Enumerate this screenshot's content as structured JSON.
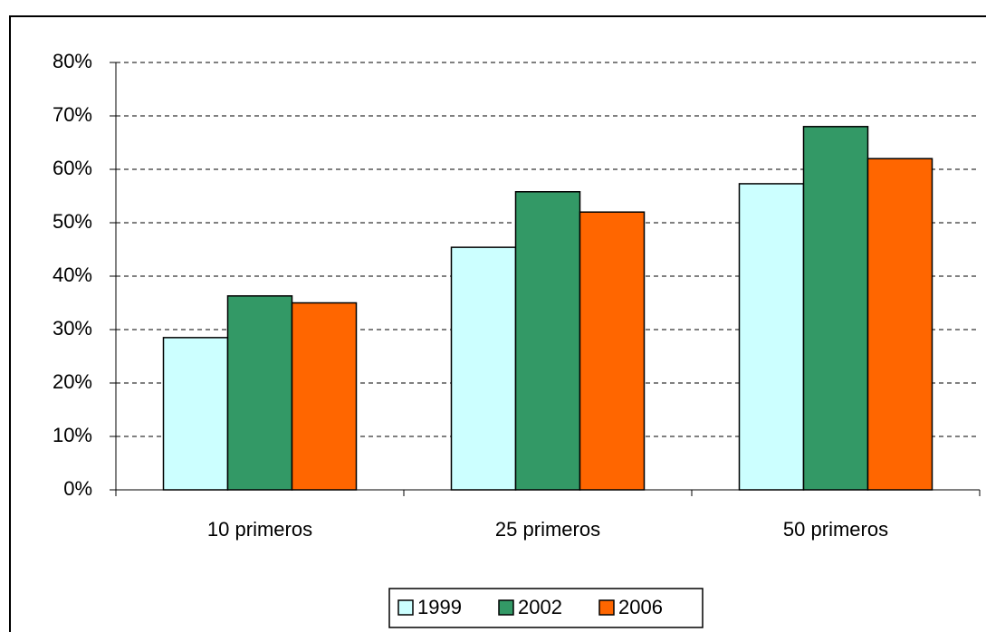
{
  "chart_data": {
    "type": "bar",
    "categories": [
      "10 primeros",
      "25 primeros",
      "50 primeros"
    ],
    "series": [
      {
        "name": "1999",
        "color": "#ccffff",
        "values": [
          28.5,
          45.4,
          57.3
        ]
      },
      {
        "name": "2002",
        "color": "#339966",
        "values": [
          36.3,
          55.8,
          68
        ]
      },
      {
        "name": "2006",
        "color": "#ff6600",
        "values": [
          35,
          52,
          62
        ]
      }
    ],
    "ylim": [
      0,
      80
    ],
    "yticks": [
      {
        "value": 0,
        "label": "0%"
      },
      {
        "value": 10,
        "label": "10%"
      },
      {
        "value": 20,
        "label": "20%"
      },
      {
        "value": 30,
        "label": "30%"
      },
      {
        "value": 40,
        "label": "40%"
      },
      {
        "value": 50,
        "label": "50%"
      },
      {
        "value": 60,
        "label": "60%"
      },
      {
        "value": 70,
        "label": "70%"
      },
      {
        "value": 80,
        "label": "80%"
      }
    ],
    "grid": true,
    "legend": "bottom"
  }
}
